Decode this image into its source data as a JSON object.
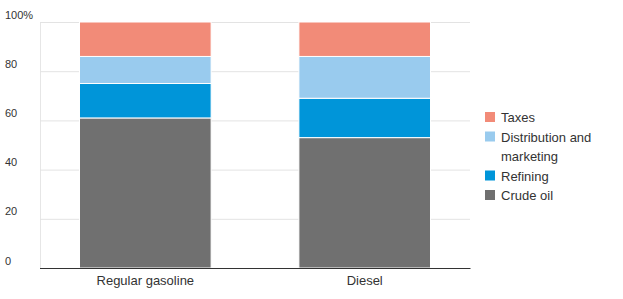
{
  "chart_data": {
    "type": "bar",
    "stacked": true,
    "categories": [
      "Regular gasoline",
      "Diesel"
    ],
    "series": [
      {
        "name": "Crude oil",
        "color": "#707070",
        "values": [
          61,
          53
        ]
      },
      {
        "name": "Refining",
        "color": "#0095d9",
        "values": [
          14,
          16
        ]
      },
      {
        "name": "Distribution and marketing",
        "color": "#99cbee",
        "values": [
          11,
          17
        ]
      },
      {
        "name": "Taxes",
        "color": "#f28b78",
        "values": [
          14,
          14
        ]
      }
    ],
    "ylim": [
      0,
      100
    ],
    "yticks": [
      0,
      20,
      40,
      60,
      80,
      {
        "value": 100,
        "label": "100%"
      }
    ],
    "grid": true,
    "legend": "right"
  }
}
